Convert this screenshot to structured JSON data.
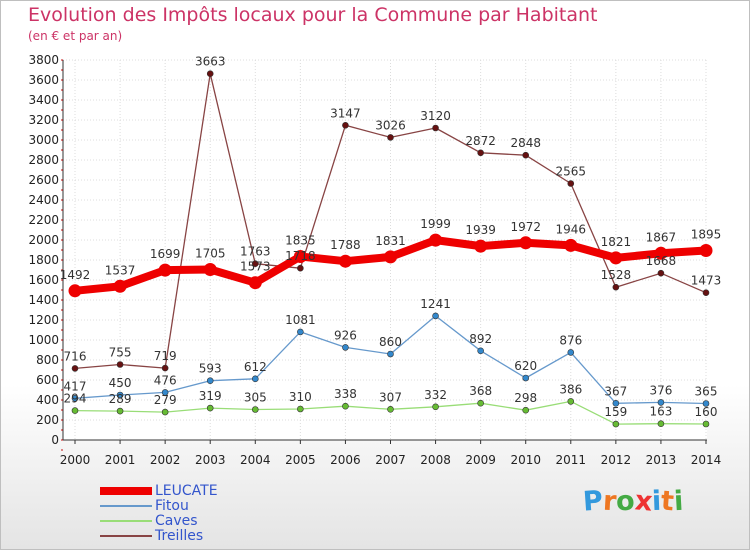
{
  "header": {
    "title": "Evolution des Impôts locaux pour la Commune par Habitant",
    "subtitle": "(en € et par an)"
  },
  "brand": {
    "letters": [
      "P",
      "r",
      "o",
      "x",
      "i",
      "t",
      "i"
    ],
    "colors": [
      "#3399dd",
      "#ee7722",
      "#44aa44",
      "#ee3333",
      "#3399dd",
      "#ee7722",
      "#44aa44"
    ]
  },
  "chart_data": {
    "type": "line",
    "x": [
      2000,
      2001,
      2002,
      2003,
      2004,
      2005,
      2006,
      2007,
      2008,
      2009,
      2010,
      2011,
      2012,
      2013,
      2014
    ],
    "ylim": [
      0,
      3800
    ],
    "yticks": [
      0,
      200,
      400,
      600,
      800,
      1000,
      1200,
      1400,
      1600,
      1800,
      2000,
      2200,
      2400,
      2600,
      2800,
      3000,
      3200,
      3400,
      3600,
      3800
    ],
    "grid": true,
    "legend_position": "bottom-left",
    "series": [
      {
        "name": "Treilles",
        "line_color": "#884444",
        "marker_color": "#661111",
        "values": [
          716,
          755,
          719,
          3663,
          1763,
          1718,
          3147,
          3026,
          3120,
          2872,
          2848,
          2565,
          1528,
          1668,
          1473
        ],
        "labels": [
          "716",
          "755",
          "719",
          "3663",
          "1763",
          "1718",
          "3147",
          "3026",
          "3120",
          "2872",
          "2848",
          "2565",
          "1528",
          "1668",
          "1473"
        ]
      },
      {
        "name": "Caves",
        "line_color": "#99dd77",
        "marker_color": "#66bb33",
        "values": [
          294,
          289,
          279,
          319,
          305,
          310,
          338,
          307,
          332,
          368,
          298,
          386,
          159,
          163,
          160
        ],
        "labels": [
          "294",
          "289",
          "279",
          "319",
          "305",
          "310",
          "338",
          "307",
          "332",
          "368",
          "298",
          "386",
          "159",
          "163",
          "160"
        ]
      },
      {
        "name": "Fitou",
        "line_color": "#6699cc",
        "marker_color": "#3388cc",
        "values": [
          417,
          450,
          476,
          593,
          612,
          1081,
          926,
          860,
          1241,
          892,
          620,
          876,
          367,
          376,
          365
        ],
        "labels": [
          "417",
          "450",
          "476",
          "593",
          "612",
          "1081",
          "926",
          "860",
          "1241",
          "892",
          "620",
          "876",
          "367",
          "376",
          "365"
        ]
      },
      {
        "name": "LEUCATE",
        "line_color": "#ee0000",
        "marker_color": "#ee0000",
        "values": [
          1492,
          1537,
          1699,
          1705,
          1573,
          1835,
          1788,
          1831,
          1999,
          1939,
          1972,
          1946,
          1821,
          1867,
          1895
        ],
        "labels": [
          "1492",
          "1537",
          "1699",
          "1705",
          "1573",
          "1835",
          "1788",
          "1831",
          "1999",
          "1939",
          "1972",
          "1946",
          "1821",
          "1867",
          "1895"
        ]
      }
    ],
    "legend": [
      "LEUCATE",
      "Fitou",
      "Caves",
      "Treilles"
    ]
  }
}
